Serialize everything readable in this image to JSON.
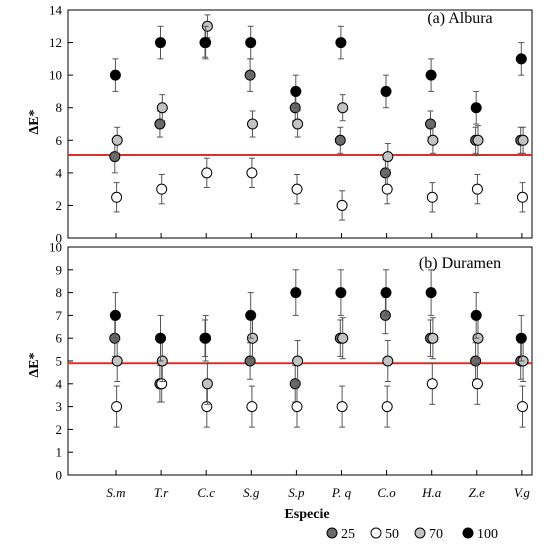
{
  "chart_data": [
    {
      "type": "scatter",
      "title": "(a) Albura",
      "ylabel": "ΔE*",
      "xlabel": "",
      "ylim": [
        0,
        14
      ],
      "yticks": [
        0,
        2,
        4,
        6,
        8,
        10,
        12,
        14
      ],
      "categories": [
        "S.m",
        "T.r",
        "C.c",
        "S.g",
        "S.p",
        "P. q",
        "C.o",
        "H.a",
        "Z.e",
        "V.g"
      ],
      "reference_line": {
        "y": 5.1,
        "color": "#d9302b"
      },
      "grid": false,
      "series": [
        {
          "name": "25",
          "color": "#6b6b6b",
          "values": [
            5,
            7,
            12,
            10,
            8,
            6,
            4,
            7,
            6,
            6
          ],
          "error": [
            1,
            0.8,
            0.9,
            1,
            0.8,
            0.8,
            0.8,
            0.8,
            0.8,
            0.8
          ]
        },
        {
          "name": "50",
          "color": "#ffffff",
          "values": [
            2.5,
            3,
            4,
            4,
            3,
            2,
            3,
            2.5,
            3,
            2.5
          ],
          "error": [
            0.9,
            0.9,
            0.9,
            0.9,
            0.9,
            0.9,
            0.9,
            0.9,
            0.9,
            0.9
          ]
        },
        {
          "name": "70",
          "color": "#c3c3c3",
          "values": [
            6,
            8,
            13,
            7,
            7,
            8,
            5,
            6,
            6,
            6
          ],
          "error": [
            0.8,
            0.8,
            0.7,
            0.8,
            0.8,
            0.8,
            0.8,
            0.8,
            0.9,
            0.8
          ]
        },
        {
          "name": "100",
          "color": "#000000",
          "values": [
            10,
            12,
            12,
            12,
            9,
            12,
            9,
            10,
            8,
            11
          ],
          "error": [
            1,
            1,
            1,
            1,
            1,
            1,
            1,
            1,
            1,
            1
          ]
        }
      ]
    },
    {
      "type": "scatter",
      "title": "(b) Duramen",
      "ylabel": "ΔE*",
      "xlabel": "Especie",
      "ylim": [
        0,
        10
      ],
      "yticks": [
        0,
        1,
        2,
        3,
        4,
        5,
        6,
        7,
        8,
        9,
        10
      ],
      "categories": [
        "S.m",
        "T.r",
        "C.c",
        "S.g",
        "S.p",
        "P. q",
        "C.o",
        "H.a",
        "Z.e",
        "V.g"
      ],
      "reference_line": {
        "y": 4.9,
        "color": "#d9302b"
      },
      "grid": false,
      "series": [
        {
          "name": "25",
          "color": "#6b6b6b",
          "values": [
            6,
            4,
            6,
            5,
            4,
            6,
            7,
            6,
            5,
            5
          ],
          "error": [
            0.8,
            0.8,
            0.8,
            0.8,
            0.8,
            0.8,
            0.8,
            0.8,
            0.8,
            0.8
          ]
        },
        {
          "name": "50",
          "color": "#ffffff",
          "values": [
            3,
            4,
            3,
            3,
            3,
            3,
            3,
            4,
            4,
            3
          ],
          "error": [
            0.9,
            0.8,
            0.9,
            0.9,
            0.9,
            0.9,
            0.9,
            0.9,
            0.9,
            0.9
          ]
        },
        {
          "name": "70",
          "color": "#c3c3c3",
          "values": [
            5,
            5,
            4,
            6,
            5,
            6,
            5,
            6,
            6,
            5
          ],
          "error": [
            0.9,
            0.9,
            0.9,
            0.9,
            0.9,
            0.9,
            0.9,
            0.9,
            0.9,
            0.9
          ]
        },
        {
          "name": "100",
          "color": "#000000",
          "values": [
            7,
            6,
            6,
            7,
            8,
            8,
            8,
            8,
            7,
            6
          ],
          "error": [
            1,
            1,
            1,
            1,
            1,
            1,
            1,
            1,
            1,
            1
          ]
        }
      ]
    }
  ],
  "legend": {
    "placement": "bottom-right",
    "items": [
      {
        "label": "25",
        "color": "#6b6b6b"
      },
      {
        "label": "50",
        "color": "#ffffff"
      },
      {
        "label": "70",
        "color": "#c3c3c3"
      },
      {
        "label": "100",
        "color": "#000000"
      }
    ]
  }
}
